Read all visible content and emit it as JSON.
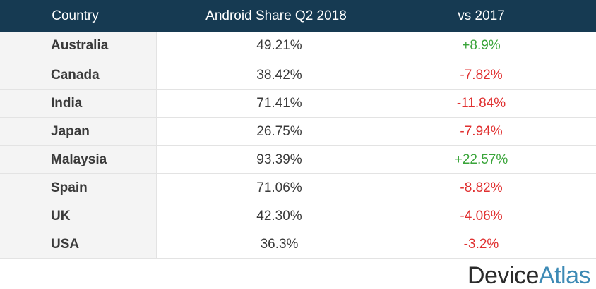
{
  "chart_data": {
    "type": "table",
    "columns": [
      "Country",
      "Android Share Q2 2018",
      "vs 2017"
    ],
    "rows": [
      {
        "country": "Australia",
        "share": "49.21%",
        "change": "+8.9%",
        "trend": "up"
      },
      {
        "country": "Canada",
        "share": "38.42%",
        "change": "-7.82%",
        "trend": "down"
      },
      {
        "country": "India",
        "share": "71.41%",
        "change": "-11.84%",
        "trend": "down"
      },
      {
        "country": "Japan",
        "share": "26.75%",
        "change": "-7.94%",
        "trend": "down"
      },
      {
        "country": "Malaysia",
        "share": "93.39%",
        "change": "+22.57%",
        "trend": "up"
      },
      {
        "country": "Spain",
        "share": "71.06%",
        "change": "-8.82%",
        "trend": "down"
      },
      {
        "country": "UK",
        "share": "42.30%",
        "change": "-4.06%",
        "trend": "down"
      },
      {
        "country": "USA",
        "share": "36.3%",
        "change": "-3.2%",
        "trend": "down"
      }
    ]
  },
  "logo": {
    "part1": "Device",
    "part2": "Atlas"
  },
  "colors": {
    "header_bg": "#163a52",
    "positive": "#3aa53a",
    "negative": "#e03030",
    "logo_accent": "#3d8ab5"
  }
}
